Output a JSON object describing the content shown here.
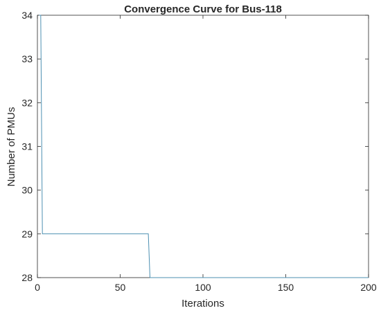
{
  "chart_data": {
    "type": "line",
    "title": "Convergence Curve for Bus-118",
    "xlabel": "Iterations",
    "ylabel": "Number of PMUs",
    "xlim": [
      0,
      200
    ],
    "ylim": [
      28,
      34
    ],
    "xticks": [
      0,
      50,
      100,
      150,
      200
    ],
    "yticks": [
      28,
      29,
      30,
      31,
      32,
      33,
      34
    ],
    "grid": false,
    "box": true,
    "series": [
      {
        "color": "#4c8fb1",
        "x": [
          1,
          2,
          3,
          67,
          67,
          68,
          200
        ],
        "y": [
          34,
          34,
          29,
          29,
          29,
          28,
          28
        ]
      }
    ]
  }
}
